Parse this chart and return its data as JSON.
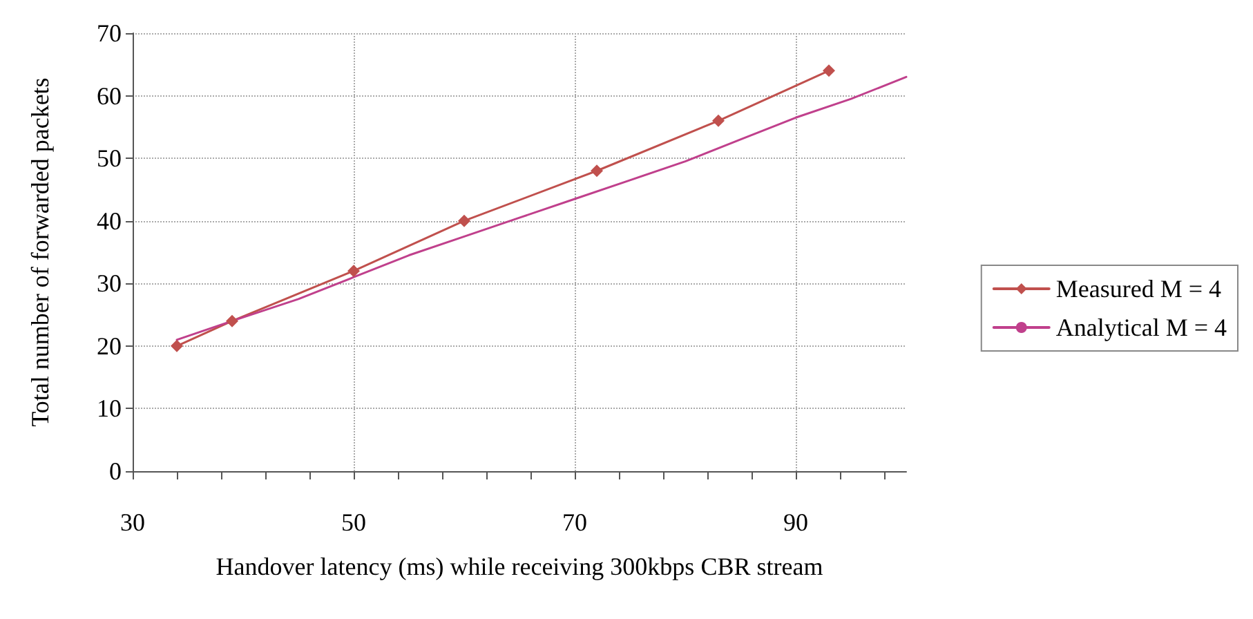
{
  "chart_data": {
    "type": "line",
    "xlabel": "Handover latency (ms) while receiving 300kbps CBR stream",
    "ylabel": "Total number of forwarded packets",
    "xlim": [
      30,
      100
    ],
    "xticks": [
      30,
      {
        "value": 34,
        "label": null
      },
      {
        "value": 38,
        "label": null
      },
      {
        "value": 42,
        "label": null
      },
      {
        "value": 46,
        "label": null
      },
      50,
      {
        "value": 54,
        "label": null
      },
      {
        "value": 58,
        "label": null
      },
      {
        "value": 62,
        "label": null
      },
      {
        "value": 66,
        "label": null
      },
      70,
      {
        "value": 74,
        "label": null
      },
      {
        "value": 78,
        "label": null
      },
      {
        "value": 82,
        "label": null
      },
      {
        "value": 86,
        "label": null
      },
      90,
      {
        "value": 94,
        "label": null
      },
      {
        "value": 98,
        "label": null
      }
    ],
    "ylim": [
      0,
      70
    ],
    "yticks": [
      0,
      10,
      20,
      30,
      40,
      50,
      60,
      70
    ],
    "grid": true,
    "legend": "right",
    "series": [
      {
        "name": "Measured M = 4",
        "color": "#c0504d",
        "marker": "diamond",
        "x": [
          34,
          39,
          50,
          60,
          72,
          83,
          93
        ],
        "values": [
          20,
          24,
          32,
          40,
          48,
          56,
          64
        ]
      },
      {
        "name": "Analytical M = 4",
        "color": "#c0408c",
        "marker": "none",
        "x": [
          34,
          39,
          45,
          50,
          55,
          60,
          65,
          70,
          75,
          80,
          85,
          90,
          95,
          100
        ],
        "values": [
          21,
          24,
          27.5,
          31,
          34.5,
          37.5,
          40.5,
          43.5,
          46.5,
          49.5,
          53,
          56.5,
          59.5,
          63
        ]
      }
    ]
  }
}
